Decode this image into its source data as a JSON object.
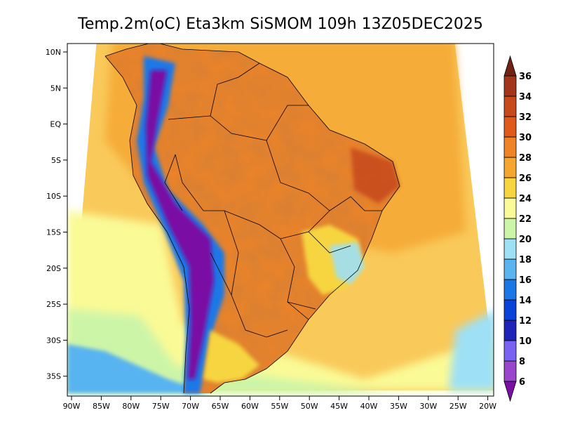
{
  "map": {
    "title": "Temp.2m(oC) Eta3km SiSMOM 109h 13Z05DEC2025",
    "lat_ticks": [
      "10N",
      "5N",
      "EQ",
      "5S",
      "10S",
      "15S",
      "20S",
      "25S",
      "30S",
      "35S"
    ],
    "lon_ticks": [
      "90W",
      "85W",
      "80W",
      "75W",
      "70W",
      "65W",
      "60W",
      "55W",
      "50W",
      "45W",
      "40W",
      "35W",
      "30W",
      "25W",
      "20W"
    ]
  },
  "colorbar": {
    "labels": [
      "6",
      "8",
      "10",
      "12",
      "14",
      "16",
      "18",
      "20",
      "22",
      "24",
      "26",
      "28",
      "30",
      "32",
      "34",
      "36"
    ],
    "colors": [
      "#7a0fa3",
      "#9a46cc",
      "#7a63f2",
      "#1f23b8",
      "#0a43d8",
      "#1a78e6",
      "#59b4f0",
      "#9ee0f5",
      "#ccf5a8",
      "#fafa96",
      "#f6d541",
      "#f5a630",
      "#ef8426",
      "#e05a1c",
      "#c74a1a",
      "#a3351a",
      "#6f2314"
    ]
  }
}
